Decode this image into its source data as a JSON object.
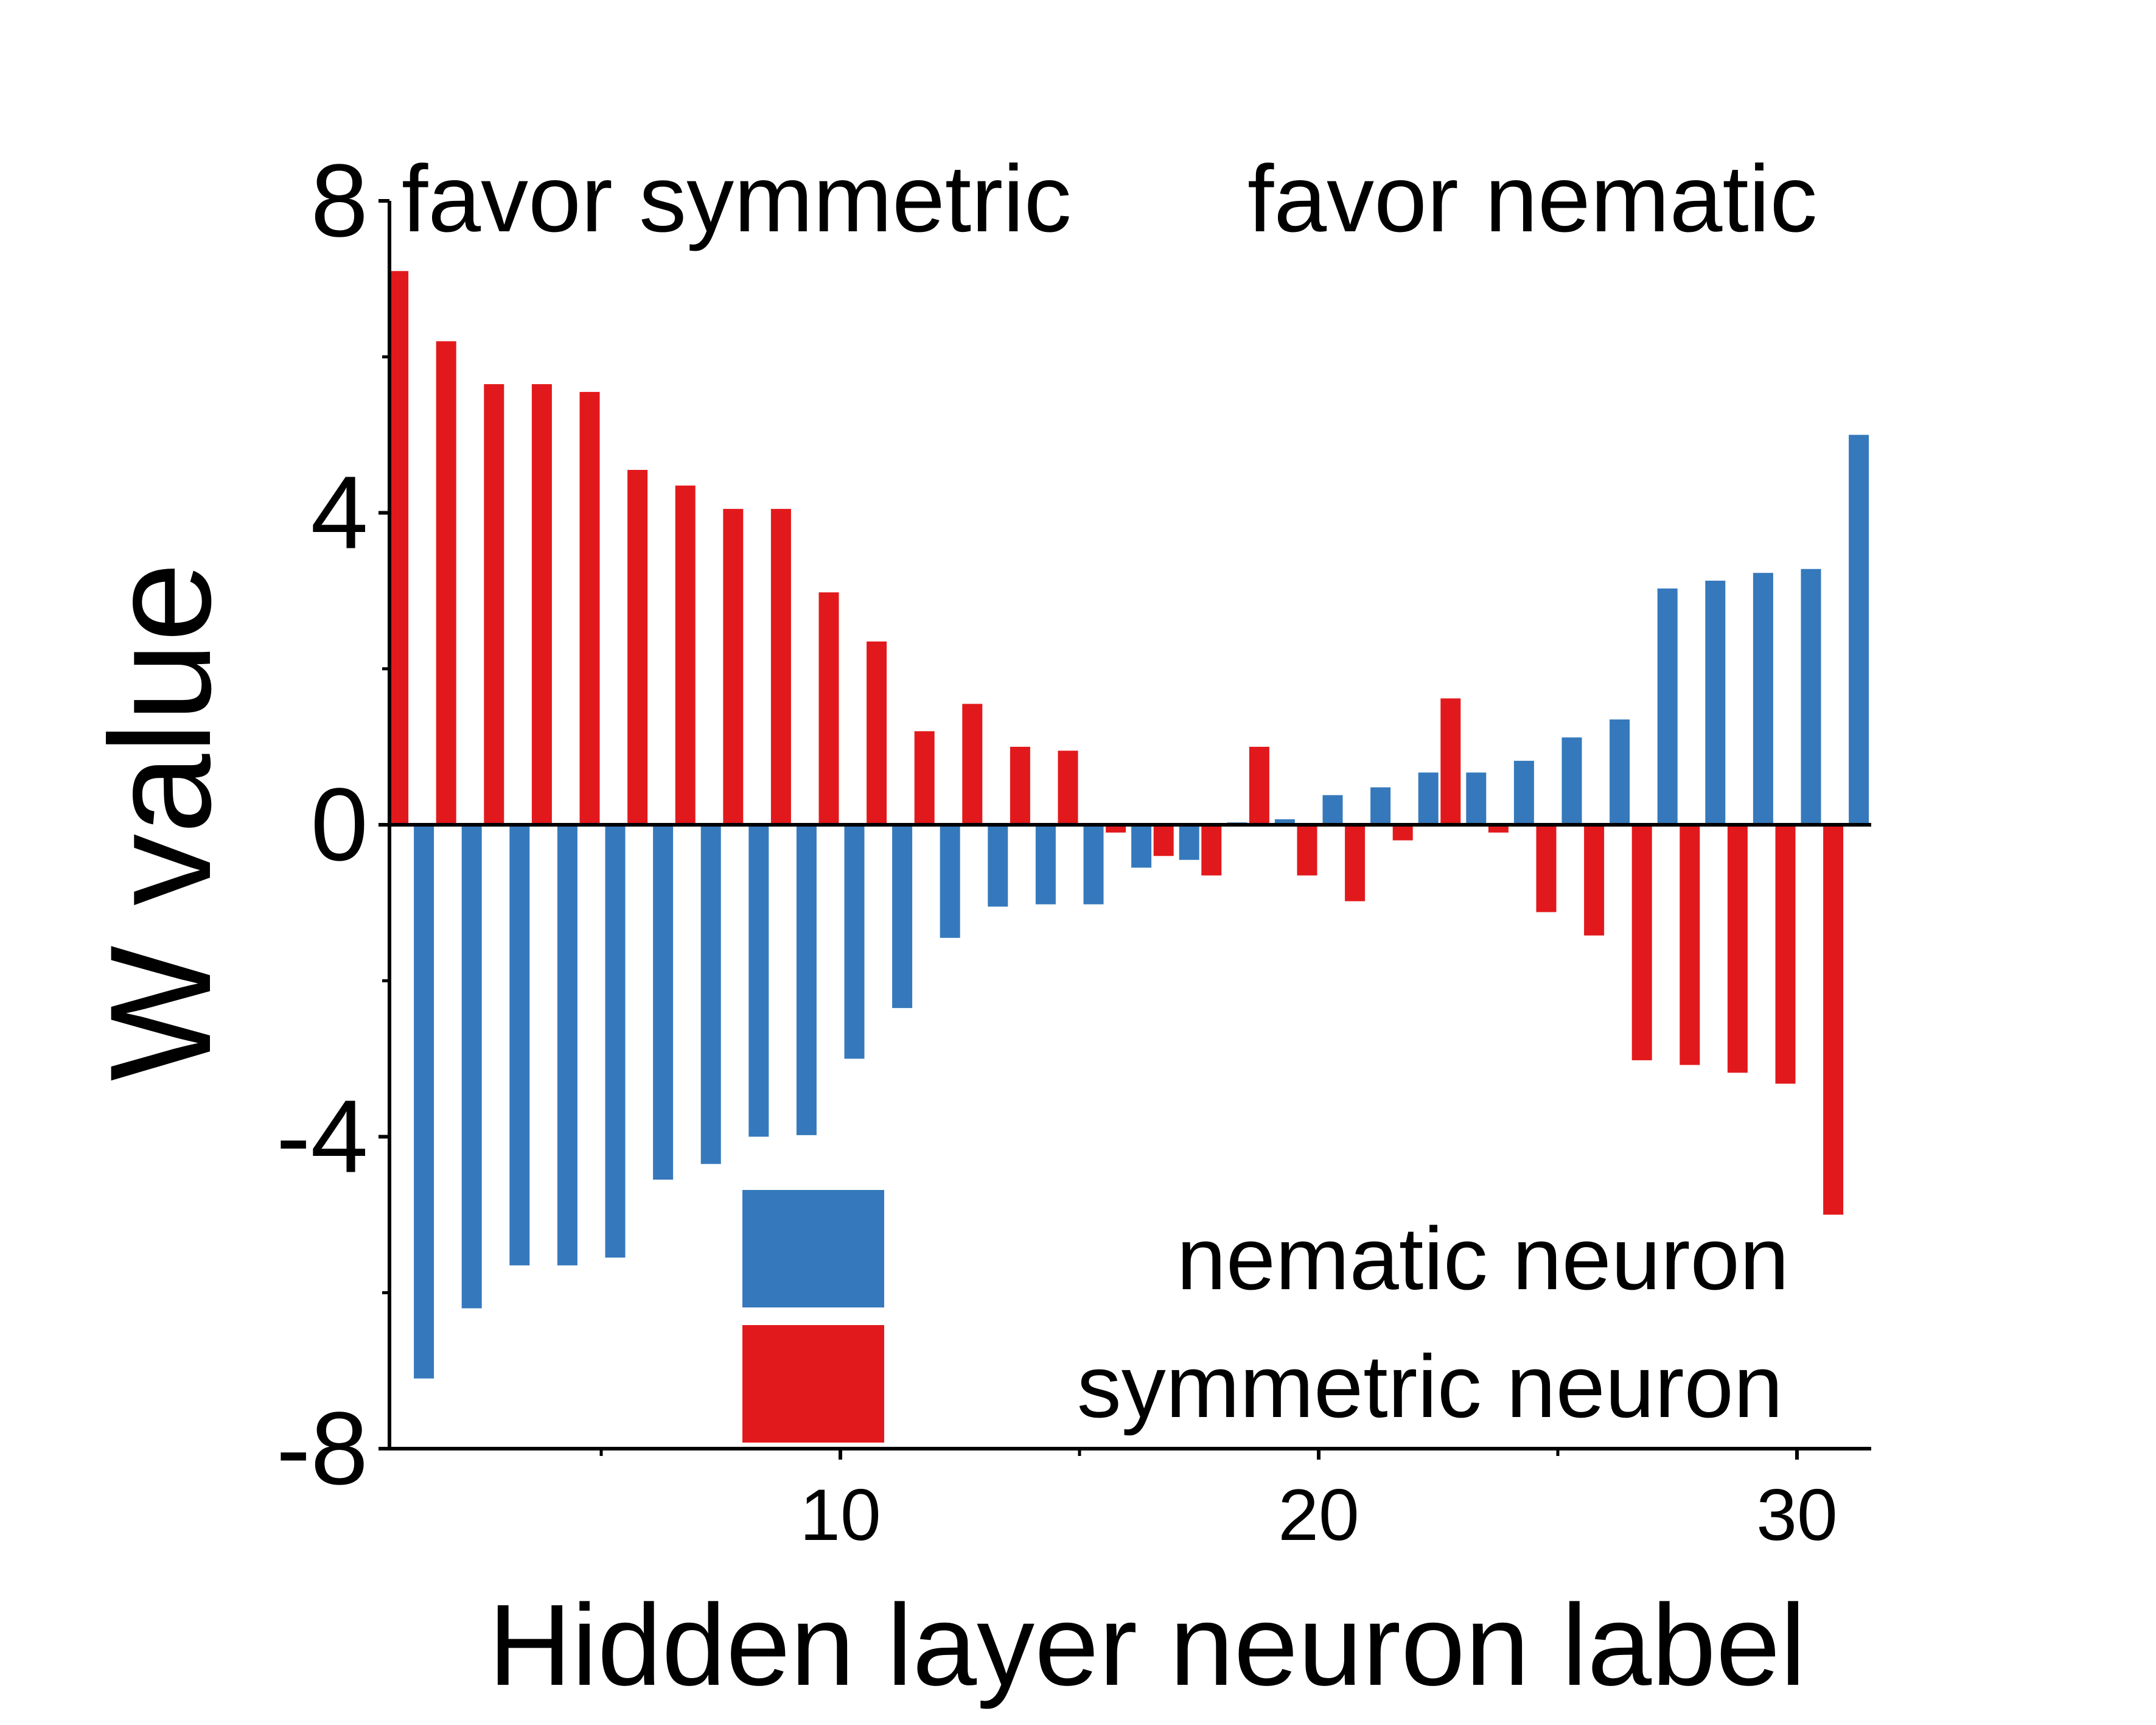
{
  "chart_data": {
    "type": "bar",
    "title": "",
    "xlabel": "Hidden layer neuron label",
    "ylabel": "W value",
    "xlim": [
      0.5,
      31.5
    ],
    "ylim": [
      -8,
      8
    ],
    "x_ticks": [
      10,
      20,
      30
    ],
    "x_tick_labels": [
      "10",
      "20",
      "30"
    ],
    "y_ticks": [
      -8,
      -4,
      0,
      4,
      8
    ],
    "y_tick_labels": [
      "-8",
      "-4",
      "0",
      "4",
      "8"
    ],
    "annotations": [
      "favor symmetric",
      "favor nematic"
    ],
    "legend_position": "bottom-center",
    "x": [
      1,
      2,
      3,
      4,
      5,
      6,
      7,
      8,
      9,
      10,
      11,
      12,
      13,
      14,
      15,
      16,
      17,
      18,
      19,
      20,
      21,
      22,
      23,
      24,
      25,
      26,
      27,
      28,
      29,
      30,
      31
    ],
    "series": [
      {
        "name": "nematic neuron",
        "color": "#3579BC",
        "values": [
          -7.1,
          -6.2,
          -5.65,
          -5.65,
          -5.55,
          -4.55,
          -4.35,
          -4.0,
          -3.98,
          -3.0,
          -2.35,
          -1.45,
          -1.05,
          -1.02,
          -1.02,
          -0.55,
          -0.45,
          0.03,
          0.07,
          0.38,
          0.48,
          0.67,
          0.67,
          0.82,
          1.12,
          1.35,
          3.03,
          3.13,
          3.23,
          3.28,
          5.0
        ]
      },
      {
        "name": "symmetric neuron",
        "color": "#E2191C",
        "values": [
          7.1,
          6.2,
          5.65,
          5.65,
          5.55,
          4.55,
          4.35,
          4.05,
          4.05,
          2.98,
          2.35,
          1.2,
          1.55,
          1.0,
          0.95,
          -0.1,
          -0.4,
          -0.65,
          1.0,
          -0.65,
          -0.98,
          -0.2,
          1.62,
          -0.1,
          -1.12,
          -1.42,
          -3.02,
          -3.08,
          -3.18,
          -3.32,
          -5.0
        ]
      }
    ]
  }
}
